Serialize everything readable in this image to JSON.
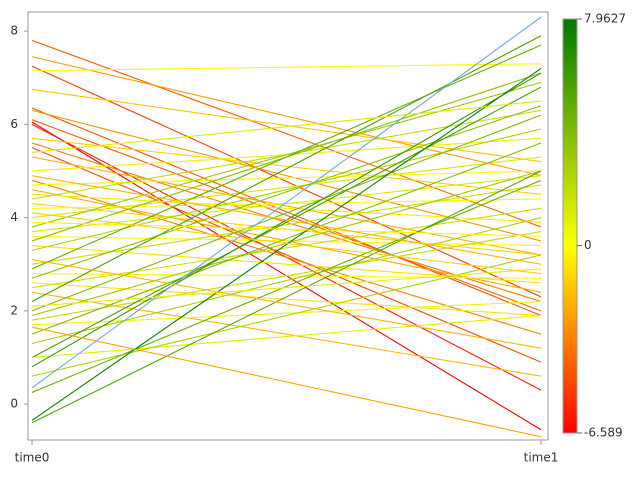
{
  "chart_data": {
    "type": "slope",
    "categories": [
      "time0",
      "time1"
    ],
    "ylim": [
      -0.77,
      8.41
    ],
    "yticks": [
      0,
      2,
      4,
      6,
      8
    ],
    "lines": [
      {
        "values": [
          7.8,
          3.8
        ]
      },
      {
        "values": [
          7.45,
          4.9
        ]
      },
      {
        "values": [
          7.25,
          2.3
        ]
      },
      {
        "values": [
          7.15,
          7.3
        ]
      },
      {
        "values": [
          6.75,
          5.2
        ]
      },
      {
        "values": [
          6.35,
          1.9
        ]
      },
      {
        "values": [
          6.3,
          3.5
        ]
      },
      {
        "values": [
          6.1,
          2.0
        ]
      },
      {
        "values": [
          6.05,
          -0.55
        ]
      },
      {
        "values": [
          6.0,
          0.3
        ]
      },
      {
        "values": [
          5.7,
          4.5
        ]
      },
      {
        "values": [
          5.6,
          2.2
        ]
      },
      {
        "values": [
          5.5,
          0.9
        ]
      },
      {
        "values": [
          5.3,
          3.2
        ]
      },
      {
        "values": [
          5.0,
          5.7
        ]
      },
      {
        "values": [
          4.8,
          1.5
        ]
      },
      {
        "values": [
          4.7,
          5.0
        ]
      },
      {
        "values": [
          4.6,
          2.4
        ]
      },
      {
        "values": [
          4.5,
          3.9
        ]
      },
      {
        "values": [
          4.4,
          6.3
        ]
      },
      {
        "values": [
          4.3,
          3.2
        ]
      },
      {
        "values": [
          4.2,
          4.4
        ]
      },
      {
        "values": [
          4.0,
          5.3
        ]
      },
      {
        "values": [
          3.8,
          6.9
        ]
      },
      {
        "values": [
          3.7,
          4.9
        ]
      },
      {
        "values": [
          3.6,
          3.4
        ]
      },
      {
        "values": [
          3.5,
          7.1
        ]
      },
      {
        "values": [
          3.4,
          2.6
        ]
      },
      {
        "values": [
          3.3,
          5.9
        ]
      },
      {
        "values": [
          3.0,
          4.7
        ]
      },
      {
        "values": [
          2.9,
          7.7
        ]
      },
      {
        "values": [
          2.8,
          2.7
        ]
      },
      {
        "values": [
          2.7,
          6.4
        ]
      },
      {
        "values": [
          2.6,
          1.9
        ]
      },
      {
        "values": [
          2.5,
          4.2
        ]
      },
      {
        "values": [
          2.4,
          0.6
        ]
      },
      {
        "values": [
          2.2,
          7.9
        ]
      },
      {
        "values": [
          2.0,
          6.2
        ]
      },
      {
        "values": [
          1.9,
          5.0
        ]
      },
      {
        "values": [
          1.8,
          3.7
        ]
      },
      {
        "values": [
          1.7,
          2.2
        ]
      },
      {
        "values": [
          1.5,
          5.6
        ]
      },
      {
        "values": [
          1.3,
          4.0
        ]
      },
      {
        "values": [
          1.0,
          6.8
        ]
      },
      {
        "values": [
          1.0,
          1.9
        ]
      },
      {
        "values": [
          0.8,
          7.1
        ]
      },
      {
        "values": [
          0.6,
          3.2
        ]
      },
      {
        "values": [
          0.35,
          8.3
        ],
        "color": "#6fa8dc"
      },
      {
        "values": [
          0.25,
          4.8
        ]
      },
      {
        "values": [
          -0.35,
          7.2
        ]
      },
      {
        "values": [
          -0.4,
          5.0
        ]
      },
      {
        "values": [
          1.65,
          -0.7
        ]
      },
      {
        "values": [
          3.9,
          3.6
        ]
      },
      {
        "values": [
          4.9,
          3.0
        ]
      },
      {
        "values": [
          5.4,
          6.5
        ]
      },
      {
        "values": [
          2.1,
          2.9
        ]
      },
      {
        "values": [
          3.1,
          1.2
        ]
      },
      {
        "values": [
          4.1,
          2.8
        ]
      }
    ],
    "colorbar": {
      "lim": [
        -6.589,
        7.9627
      ],
      "ticks": [
        -6.589,
        0,
        7.9627
      ],
      "colors": [
        "#ff0000",
        "#ffff00",
        "#007a00"
      ]
    }
  }
}
